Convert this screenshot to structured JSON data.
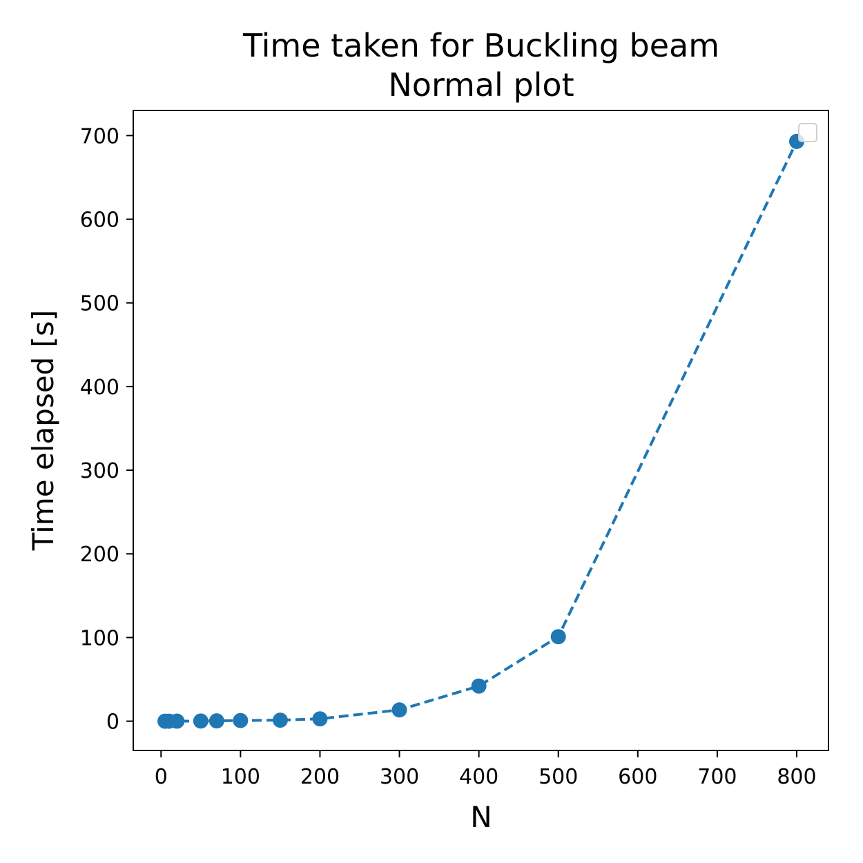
{
  "chart_data": {
    "type": "line",
    "title_line1": "Time taken for Buckling beam",
    "title_line2": "Normal plot",
    "xlabel": "N",
    "ylabel": "Time elapsed [s]",
    "xlim": [
      -35,
      840
    ],
    "ylim": [
      -35,
      730
    ],
    "xticks": [
      0,
      100,
      200,
      300,
      400,
      500,
      600,
      700,
      800
    ],
    "yticks": [
      0,
      100,
      200,
      300,
      400,
      500,
      600,
      700
    ],
    "grid": false,
    "legend": "top-right (empty box)",
    "series": [
      {
        "color": "#1f77b4",
        "line_style": "dashed",
        "marker": "circle",
        "x": [
          5,
          10,
          20,
          50,
          70,
          100,
          150,
          200,
          300,
          400,
          500,
          800
        ],
        "y": [
          0.01,
          0.02,
          0.05,
          0.2,
          0.35,
          0.8,
          1.2,
          2.8,
          13.5,
          42,
          101,
          693
        ]
      }
    ]
  }
}
